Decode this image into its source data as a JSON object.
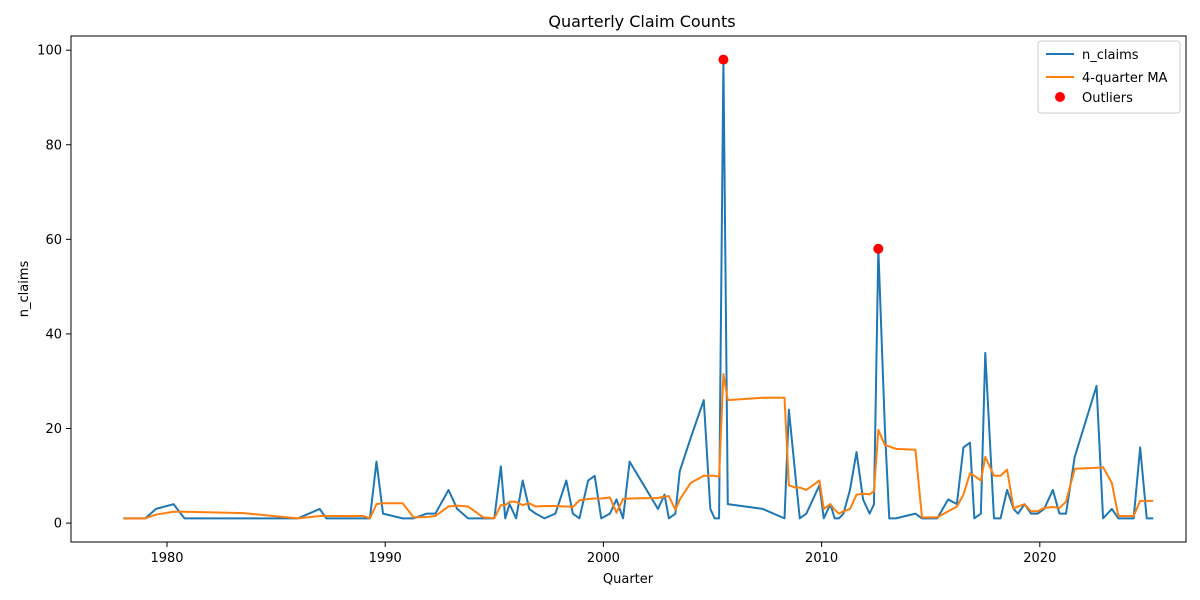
{
  "chart_data": {
    "type": "line",
    "title": "Quarterly Claim Counts",
    "xlabel": "Quarter",
    "ylabel": "n_claims",
    "xlim": [
      1975.6,
      2026.7
    ],
    "ylim": [
      -4,
      103
    ],
    "xticks": [
      1980,
      1990,
      2000,
      2010,
      2020
    ],
    "yticks": [
      0,
      20,
      40,
      60,
      80,
      100
    ],
    "grid": false,
    "legend_position": "top-right",
    "colors": {
      "n_claims": "#1f77b4",
      "ma": "#ff7f0e",
      "outliers": "#ff0000"
    },
    "series": [
      {
        "name": "n_claims",
        "type": "line",
        "x": [
          1978.0,
          1979.0,
          1979.5,
          1980.3,
          1980.8,
          1983.5,
          1986.0,
          1987.0,
          1987.3,
          1989.0,
          1989.3,
          1989.6,
          1989.9,
          1990.8,
          1991.3,
          1991.9,
          1992.3,
          1992.9,
          1993.3,
          1993.8,
          1994.5,
          1995.0,
          1995.3,
          1995.5,
          1995.7,
          1996.0,
          1996.3,
          1996.6,
          1996.9,
          1997.3,
          1997.8,
          1998.3,
          1998.6,
          1998.9,
          1999.3,
          1999.6,
          1999.9,
          2000.3,
          2000.6,
          2000.9,
          2001.2,
          2002.5,
          2002.8,
          2003.0,
          2003.3,
          2003.5,
          2004.0,
          2004.6,
          2004.9,
          2005.1,
          2005.3,
          2005.5,
          2005.7,
          2007.3,
          2008.3,
          2008.5,
          2008.8,
          2009.0,
          2009.3,
          2009.9,
          2010.1,
          2010.4,
          2010.6,
          2010.8,
          2011.0,
          2011.3,
          2011.6,
          2011.9,
          2012.2,
          2012.4,
          2012.6,
          2012.9,
          2013.1,
          2013.4,
          2014.3,
          2014.6,
          2015.3,
          2015.8,
          2016.2,
          2016.5,
          2016.8,
          2017.0,
          2017.3,
          2017.5,
          2017.9,
          2018.2,
          2018.5,
          2018.8,
          2019.0,
          2019.3,
          2019.6,
          2019.9,
          2020.2,
          2020.6,
          2020.9,
          2021.2,
          2021.6,
          2022.6,
          2022.9,
          2023.3,
          2023.6,
          2024.0,
          2024.3,
          2024.6,
          2024.9,
          2025.2
        ],
        "y": [
          1,
          1,
          3,
          4,
          1,
          1,
          1,
          3,
          1,
          1,
          1,
          13,
          2,
          1,
          1,
          2,
          2,
          7,
          3,
          1,
          1,
          1,
          12,
          1,
          4,
          1,
          9,
          3,
          2,
          1,
          2,
          9,
          2,
          1,
          9,
          10,
          1,
          2,
          5,
          1,
          13,
          3,
          6,
          1,
          2,
          11,
          18,
          26,
          3,
          1,
          1,
          98,
          4,
          3,
          1,
          24,
          10,
          1,
          2,
          8,
          1,
          4,
          1,
          1,
          2,
          7,
          15,
          5,
          2,
          4,
          58,
          20,
          1,
          1,
          2,
          1,
          1,
          5,
          4,
          16,
          17,
          1,
          2,
          36,
          1,
          1,
          7,
          3,
          2,
          4,
          2,
          2,
          3,
          7,
          2,
          2,
          14,
          29,
          1,
          3,
          1,
          1,
          1,
          16,
          1,
          1
        ]
      },
      {
        "name": "4-quarter MA",
        "type": "line",
        "x": [
          1978.0,
          1979.0,
          1979.5,
          1980.3,
          1980.8,
          1983.5,
          1986.0,
          1987.0,
          1987.3,
          1989.0,
          1989.3,
          1989.6,
          1989.9,
          1990.8,
          1991.3,
          1991.9,
          1992.3,
          1992.9,
          1993.3,
          1993.8,
          1994.5,
          1995.0,
          1995.3,
          1995.5,
          1995.7,
          1996.0,
          1996.3,
          1996.6,
          1996.9,
          1997.3,
          1997.8,
          1998.3,
          1998.6,
          1998.9,
          1999.3,
          1999.6,
          1999.9,
          2000.3,
          2000.6,
          2000.9,
          2001.2,
          2002.5,
          2002.8,
          2003.0,
          2003.3,
          2003.5,
          2004.0,
          2004.6,
          2004.9,
          2005.1,
          2005.3,
          2005.5,
          2005.7,
          2007.3,
          2008.3,
          2008.5,
          2008.8,
          2009.0,
          2009.3,
          2009.9,
          2010.1,
          2010.4,
          2010.6,
          2010.8,
          2011.0,
          2011.3,
          2011.6,
          2011.9,
          2012.2,
          2012.4,
          2012.6,
          2012.9,
          2013.1,
          2013.4,
          2014.3,
          2014.6,
          2015.3,
          2015.8,
          2016.2,
          2016.5,
          2016.8,
          2017.0,
          2017.3,
          2017.5,
          2017.9,
          2018.2,
          2018.5,
          2018.8,
          2019.0,
          2019.3,
          2019.6,
          2019.9,
          2020.2,
          2020.6,
          2020.9,
          2021.2,
          2021.6,
          2022.6,
          2022.9,
          2023.3,
          2023.6,
          2024.0,
          2024.3,
          2024.6,
          2024.9,
          2025.2
        ],
        "y": [
          1,
          1,
          1.8,
          2.4,
          2.4,
          2.1,
          1,
          1.5,
          1.5,
          1.5,
          1,
          4,
          4.2,
          4.2,
          1.2,
          1.3,
          1.5,
          3.5,
          3.7,
          3.5,
          1.2,
          1,
          3.8,
          3.8,
          4.5,
          4.5,
          3.8,
          4.2,
          3.5,
          3.6,
          3.6,
          3.5,
          3.4,
          4.8,
          5.1,
          5.2,
          5.2,
          5.4,
          2.2,
          5.1,
          5.2,
          5.3,
          5.6,
          5.7,
          2.8,
          5,
          8.5,
          10,
          10,
          10,
          9.8,
          31.5,
          26,
          26.5,
          26.5,
          8,
          7.5,
          7.5,
          7,
          9,
          3,
          4,
          2.8,
          2,
          2.5,
          3,
          6,
          6.2,
          6.1,
          6.7,
          19.7,
          16.5,
          16.2,
          15.7,
          15.5,
          1.2,
          1.2,
          2.5,
          3.5,
          6,
          10.5,
          10,
          9,
          14,
          10,
          10,
          11.3,
          3.1,
          3.5,
          4,
          2.5,
          2.5,
          3.2,
          3.4,
          3.2,
          4.5,
          11.5,
          11.7,
          11.8,
          8.5,
          1.5,
          1.5,
          1.5,
          4.7,
          4.7,
          4.7
        ]
      },
      {
        "name": "Outliers",
        "type": "scatter",
        "x": [
          2005.5,
          2012.6
        ],
        "y": [
          98,
          58
        ]
      }
    ]
  }
}
